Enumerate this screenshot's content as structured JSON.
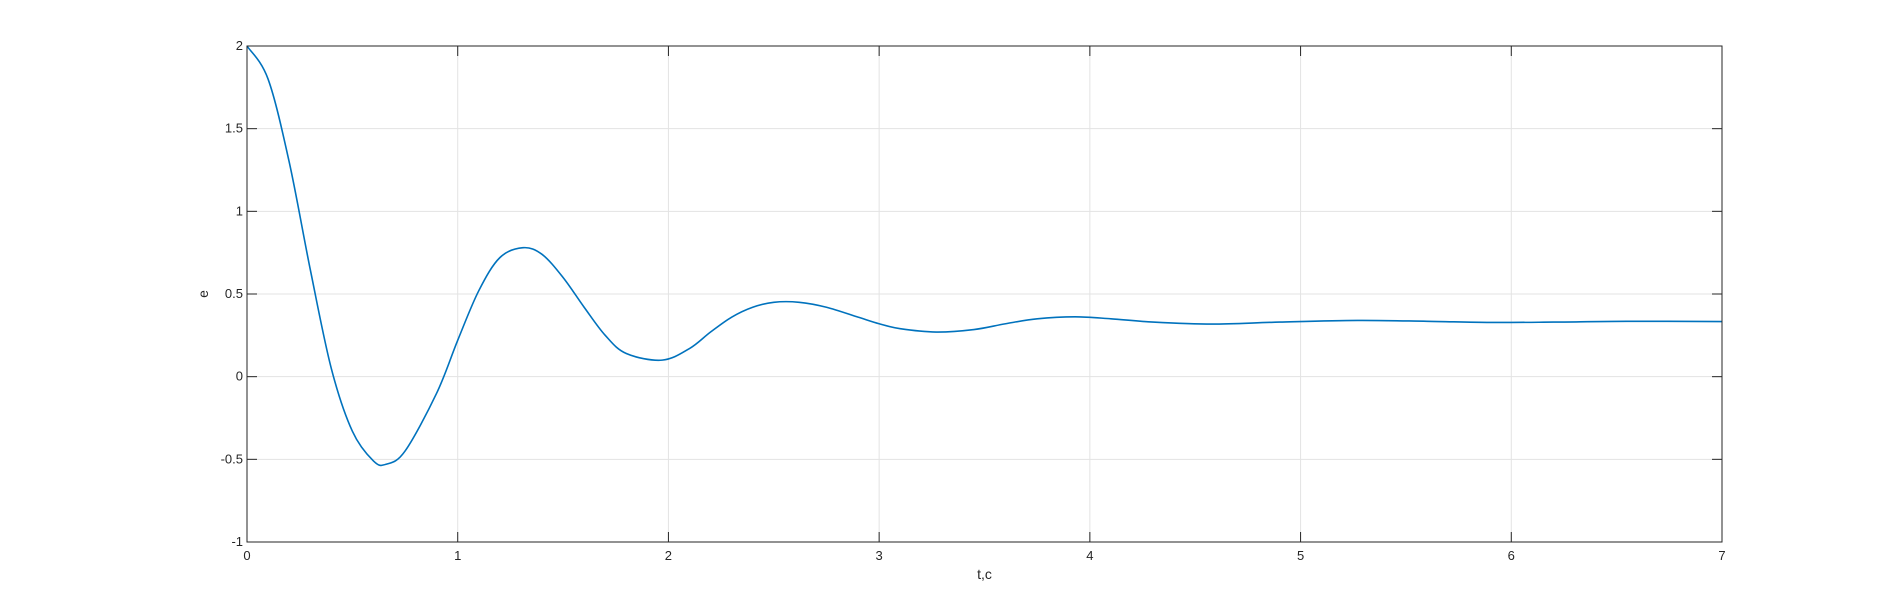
{
  "chart_data": {
    "type": "line",
    "title": "",
    "xlabel": "t,c",
    "ylabel": "e",
    "xlim": [
      0,
      7
    ],
    "ylim": [
      -1,
      2
    ],
    "xticks": [
      0,
      1,
      2,
      3,
      4,
      5,
      6,
      7
    ],
    "xtick_labels": [
      "0",
      "1",
      "2",
      "3",
      "4",
      "5",
      "6",
      "7"
    ],
    "yticks": [
      -1,
      -0.5,
      0,
      0.5,
      1,
      1.5,
      2
    ],
    "ytick_labels": [
      "-1",
      "-0.5",
      "0",
      "0.5",
      "1",
      "1.5",
      "2"
    ],
    "grid": true,
    "legend": "none",
    "series": [
      {
        "color": "#0072BD",
        "x": [
          0,
          0.1,
          0.2,
          0.3,
          0.4,
          0.5,
          0.6,
          0.66,
          0.75,
          0.9,
          1.0,
          1.1,
          1.2,
          1.31,
          1.4,
          1.5,
          1.6,
          1.7,
          1.8,
          1.97,
          2.1,
          2.2,
          2.3,
          2.4,
          2.5,
          2.62,
          2.75,
          2.9,
          3.0,
          3.1,
          3.27,
          3.45,
          3.6,
          3.75,
          3.93,
          4.1,
          4.3,
          4.58,
          4.9,
          5.27,
          5.6,
          5.9,
          6.2,
          6.55,
          7.0
        ],
        "y": [
          2.0,
          1.8,
          1.3,
          0.65,
          0.05,
          -0.33,
          -0.51,
          -0.53,
          -0.45,
          -0.1,
          0.22,
          0.52,
          0.72,
          0.78,
          0.74,
          0.6,
          0.42,
          0.25,
          0.14,
          0.1,
          0.17,
          0.27,
          0.36,
          0.42,
          0.45,
          0.45,
          0.42,
          0.36,
          0.32,
          0.29,
          0.27,
          0.285,
          0.32,
          0.35,
          0.362,
          0.35,
          0.33,
          0.318,
          0.33,
          0.34,
          0.335,
          0.328,
          0.33,
          0.335,
          0.333
        ]
      }
    ]
  }
}
